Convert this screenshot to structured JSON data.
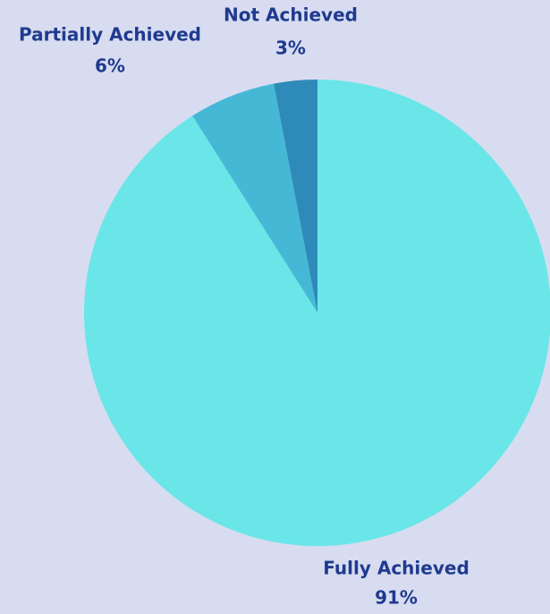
{
  "chart_data": {
    "type": "pie",
    "categories": [
      "Fully Achieved",
      "Partially Achieved",
      "Not Achieved"
    ],
    "values": [
      91,
      6,
      3
    ],
    "value_labels": [
      "91%",
      "6%",
      "3%"
    ],
    "colors": [
      "#6ae6e8",
      "#45b8d6",
      "#2e8ab8"
    ]
  }
}
